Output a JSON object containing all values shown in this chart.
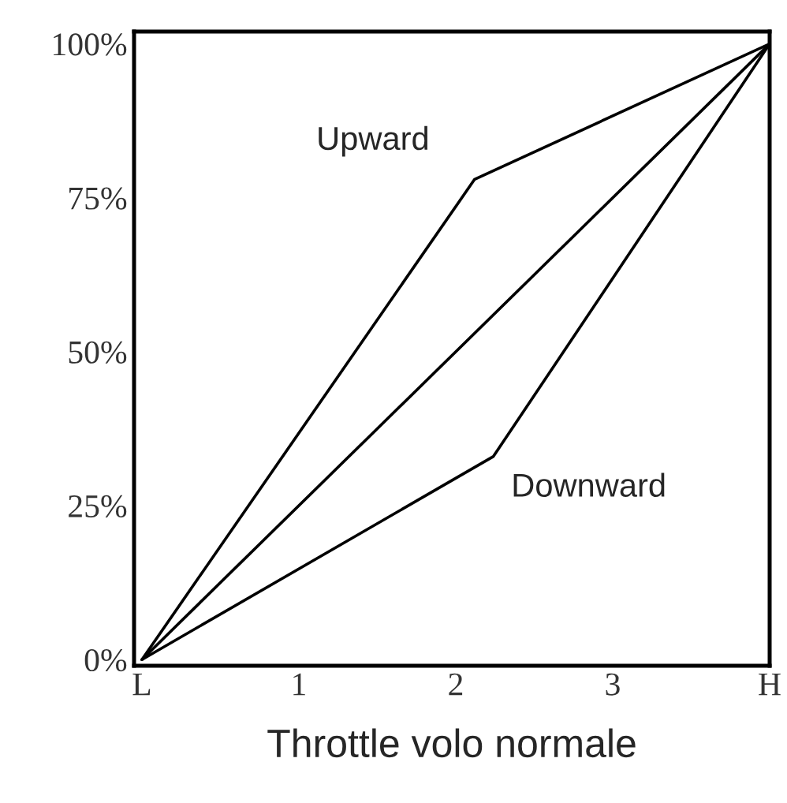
{
  "chart_data": {
    "type": "line",
    "xlabel": "Throttle volo normale",
    "series": [
      {
        "name": "Upward",
        "color": "#000000",
        "x": [
          0,
          2.12,
          4
        ],
        "values": [
          0,
          78,
          100
        ]
      },
      {
        "color": "#000000",
        "x": [
          0,
          4
        ],
        "values": [
          0,
          100
        ]
      },
      {
        "name": "Downward",
        "color": "#000000",
        "x": [
          0,
          2.24,
          4
        ],
        "values": [
          0,
          33,
          100
        ]
      }
    ],
    "xlim": [
      -0.05,
      4.0
    ],
    "ylim": [
      -1,
      102
    ],
    "xticks": [
      {
        "value": 0,
        "label": "L"
      },
      1,
      2,
      3,
      {
        "value": 4,
        "label": "H"
      }
    ],
    "yticks": [
      {
        "value": 0,
        "label": "0%"
      },
      {
        "value": 25,
        "label": "25%"
      },
      {
        "value": 50,
        "label": "50%"
      },
      {
        "value": 75,
        "label": "75%"
      },
      {
        "value": 100,
        "label": "100%"
      }
    ],
    "grid": false,
    "legend": false,
    "marker": "none",
    "line_style": "solid"
  }
}
